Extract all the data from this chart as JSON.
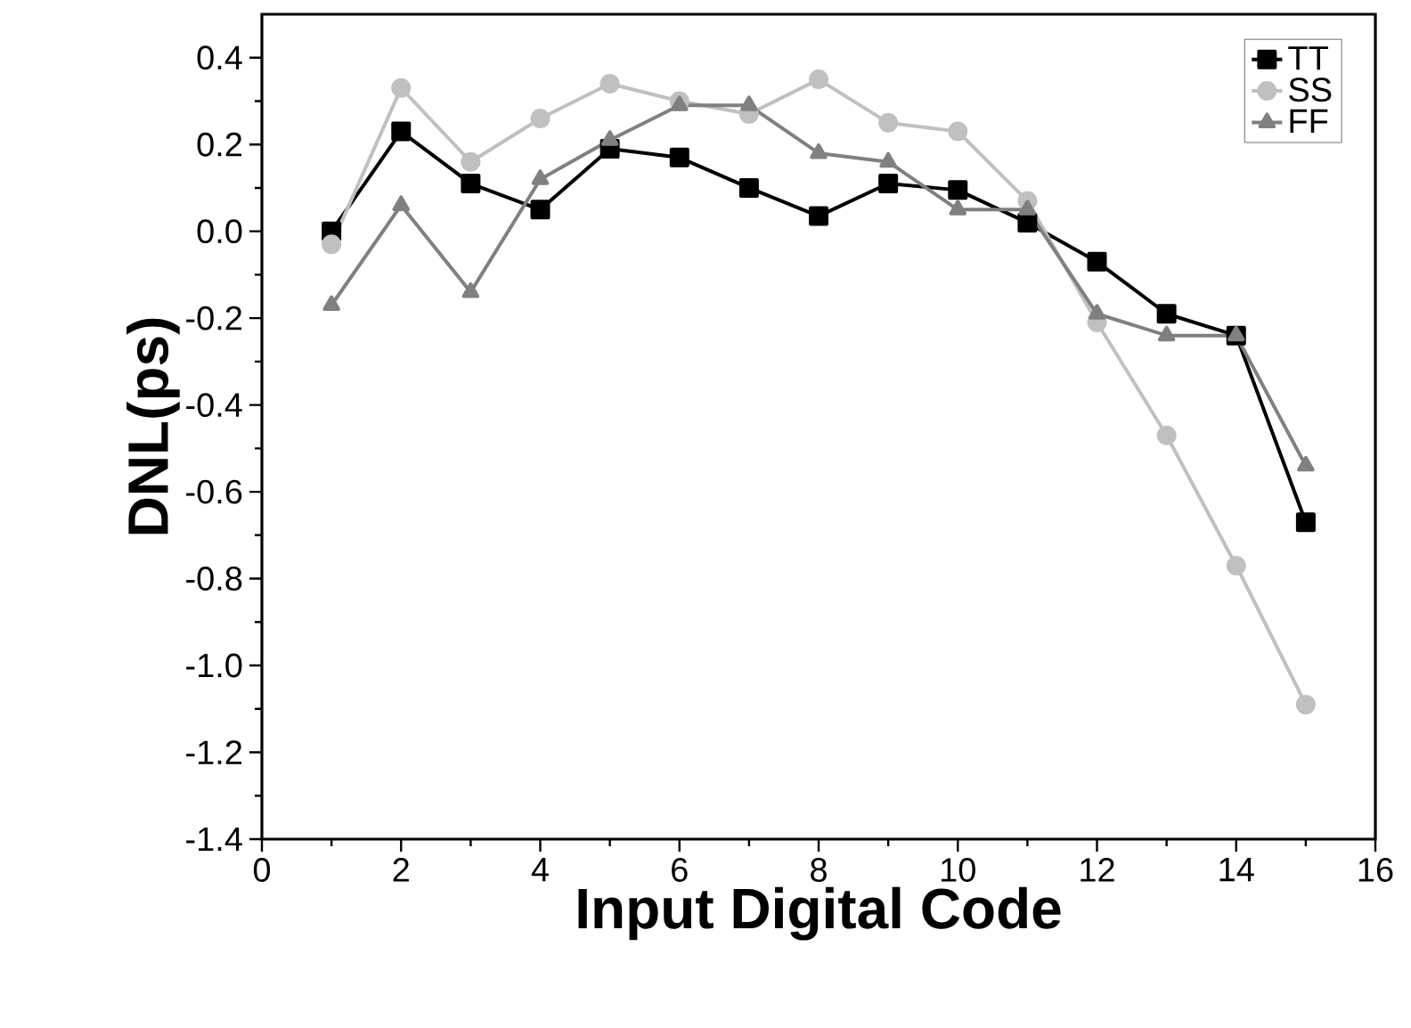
{
  "chart_data": {
    "type": "line",
    "xlabel": "Input Digital Code",
    "ylabel": "DNL(ps)",
    "x": [
      1,
      2,
      3,
      4,
      5,
      6,
      7,
      8,
      9,
      10,
      11,
      12,
      13,
      14,
      15
    ],
    "series": [
      {
        "name": "TT",
        "color": "#000000",
        "marker": "square",
        "values": [
          0.0,
          0.23,
          0.11,
          0.05,
          0.19,
          0.17,
          0.1,
          0.035,
          0.11,
          0.095,
          0.02,
          -0.07,
          -0.19,
          -0.24,
          -0.67
        ]
      },
      {
        "name": "SS",
        "color": "#c0c0c0",
        "marker": "circle",
        "values": [
          -0.03,
          0.33,
          0.16,
          0.26,
          0.34,
          0.3,
          0.27,
          0.35,
          0.25,
          0.23,
          0.07,
          -0.21,
          -0.47,
          -0.77,
          -1.09
        ]
      },
      {
        "name": "FF",
        "color": "#808080",
        "marker": "triangle",
        "values": [
          -0.17,
          0.06,
          -0.14,
          0.12,
          0.21,
          0.29,
          0.29,
          0.18,
          0.16,
          0.05,
          0.05,
          -0.19,
          -0.24,
          -0.24,
          -0.54
        ]
      }
    ],
    "xlim": [
      0,
      16
    ],
    "xticks": [
      0,
      2,
      4,
      6,
      8,
      10,
      12,
      14,
      16
    ],
    "ylim": [
      -1.4,
      0.5
    ],
    "yticks": [
      -1.4,
      -1.2,
      {
        "value": -1.0,
        "label": "-1.0"
      },
      -0.8,
      -0.6,
      -0.4,
      -0.2,
      {
        "value": 0.0,
        "label": "0.0"
      },
      0.2,
      0.4
    ],
    "legend": "top right",
    "grid": false,
    "line_style": "solid"
  }
}
